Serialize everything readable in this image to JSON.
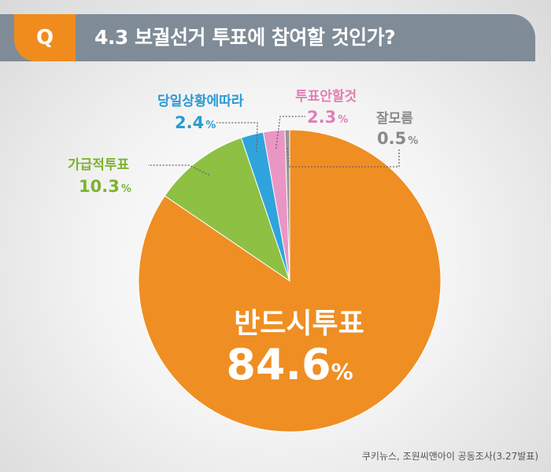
{
  "header": {
    "badge": "Q",
    "question": "4.3 보궐선거 투표에 참여할 것인가?"
  },
  "chart_data": {
    "type": "pie",
    "categories": [
      "반드시투표",
      "가급적투표",
      "당일상황에따라",
      "투표안할것",
      "잘모름"
    ],
    "values": [
      84.6,
      10.3,
      2.4,
      2.3,
      0.5
    ],
    "value_labels": [
      "84.6",
      "10.3",
      "2.4",
      "2.3",
      "0.5"
    ],
    "unit": "%",
    "colors": [
      "#ef8e23",
      "#8dc043",
      "#2fa4dc",
      "#ea96c4",
      "#969696"
    ],
    "label_colors": [
      "#ffffff",
      "#7cb32f",
      "#2a9ad4",
      "#e27fb6",
      "#8a8a8a"
    ],
    "start": "12 o'clock, clockwise from 잘모름 counter-direction",
    "legend": "none (direct labels)"
  },
  "source": "쿠키뉴스, 조원씨앤아이 공동조사(3.27발표)"
}
